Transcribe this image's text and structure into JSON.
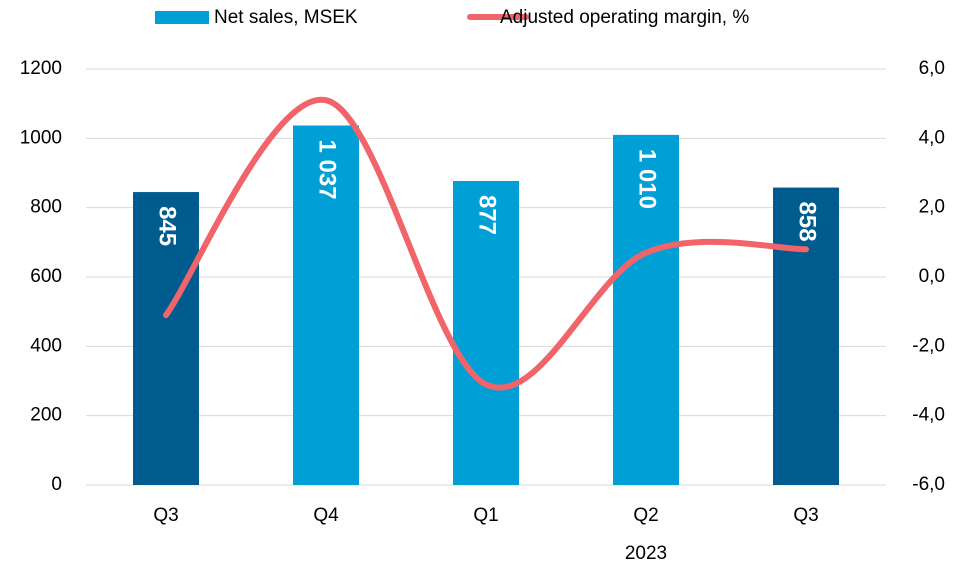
{
  "chart_data": {
    "type": "bar",
    "categories": [
      "Q3",
      "Q4",
      "Q1",
      "Q2",
      "Q3"
    ],
    "annotations": [
      "2023"
    ],
    "series": [
      {
        "name": "Net sales, MSEK",
        "type": "bar",
        "color": "#00a0d6",
        "colors": [
          "#005b8f",
          "#00a0d6",
          "#00a0d6",
          "#00a0d6",
          "#005b8f"
        ],
        "values": [
          845,
          1037,
          877,
          1010,
          858
        ],
        "value_labels": [
          "845",
          "1 037",
          "877",
          "1 010",
          "858"
        ]
      },
      {
        "name": "Adjusted operating margin, %",
        "type": "line",
        "color": "#f0646a",
        "axis": "y2",
        "values": [
          -1.1,
          5.1,
          -3.1,
          0.7,
          0.8
        ]
      }
    ],
    "ylim": [
      0,
      1200
    ],
    "yticks": [
      0,
      200,
      400,
      600,
      800,
      1000,
      1200
    ],
    "y2lim": [
      -6,
      6
    ],
    "y2ticks": [
      {
        "value": -6,
        "label": "-6,0"
      },
      {
        "value": -4,
        "label": "-4,0"
      },
      {
        "value": -2,
        "label": "-2,0"
      },
      {
        "value": 0,
        "label": "0,0"
      },
      {
        "value": 2,
        "label": "2,0"
      },
      {
        "value": 4,
        "label": "4,0"
      },
      {
        "value": 6,
        "label": "6,0"
      }
    ],
    "grid": true,
    "legend": "top"
  }
}
